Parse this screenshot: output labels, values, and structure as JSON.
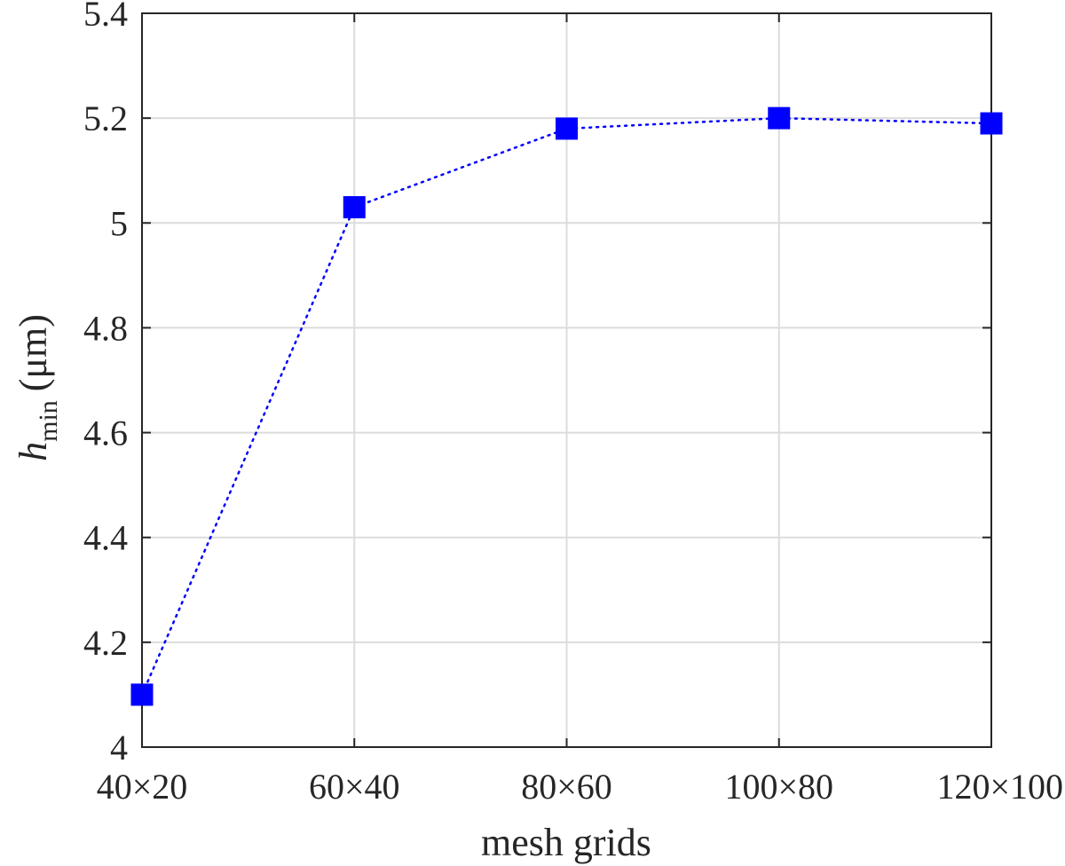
{
  "chart_data": {
    "type": "line",
    "title": "",
    "xlabel": "mesh grids",
    "ylabel": {
      "symbol": "h",
      "subscript": "min",
      "unit": "(μm)"
    },
    "categories": [
      "40×20",
      "60×40",
      "80×60",
      "100×80",
      "120×100"
    ],
    "series": [
      {
        "values": [
          4.1,
          5.03,
          5.18,
          5.2,
          5.19
        ]
      }
    ],
    "ylim": [
      4,
      5.4
    ],
    "yticks": [
      4,
      4.2,
      4.4,
      4.6,
      4.8,
      5,
      5.2,
      5.4
    ],
    "ytick_labels": [
      "4",
      "4.2",
      "4.4",
      "4.6",
      "4.8",
      "5",
      "5.2",
      "5.4"
    ],
    "grid": true,
    "box": true,
    "line_style": "dotted",
    "marker": "square",
    "colors": {
      "series": "#0000ff",
      "axis": "#262626",
      "grid": "#dcdcdc"
    }
  }
}
